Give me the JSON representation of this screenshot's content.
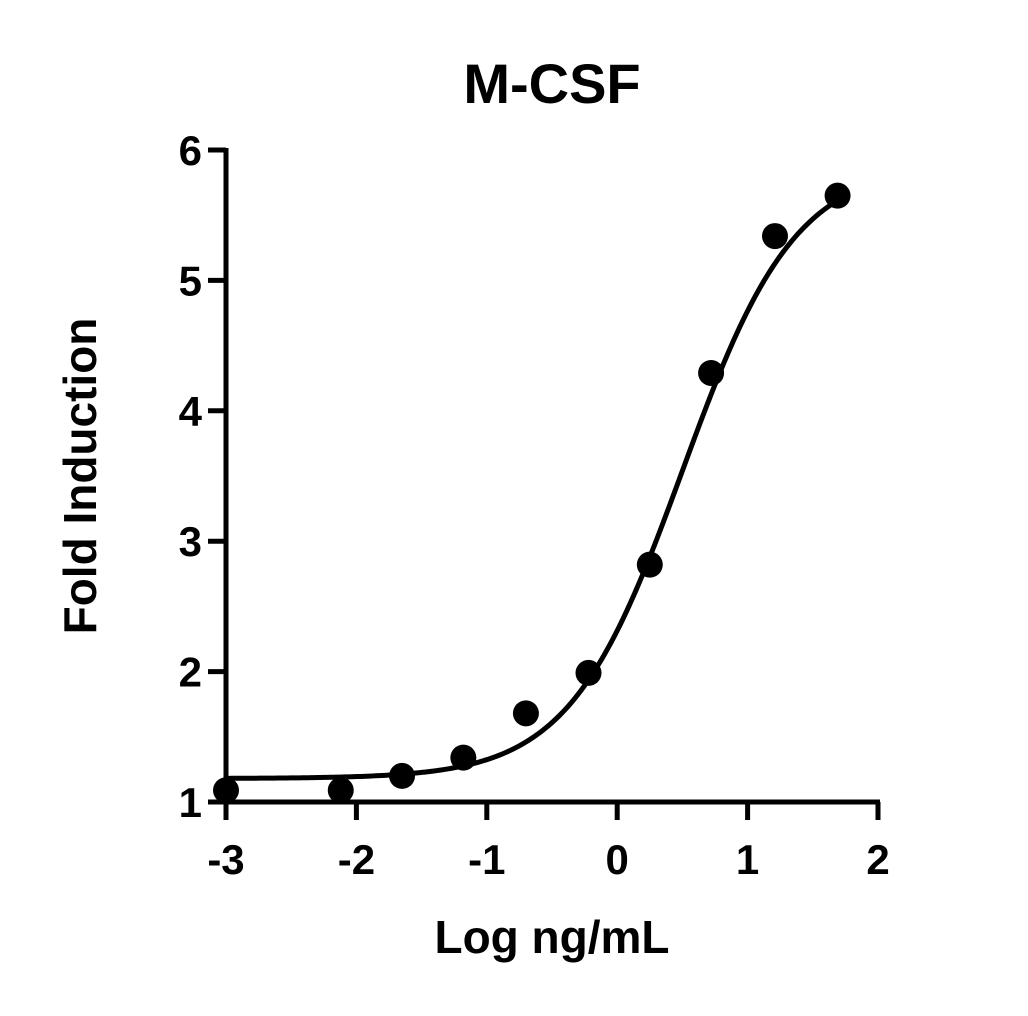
{
  "chart_data": {
    "type": "scatter",
    "title": "M-CSF",
    "xlabel": "Log ng/mL",
    "ylabel": "Fold Induction",
    "xlim": [
      -3,
      2
    ],
    "ylim": [
      1,
      6
    ],
    "x_ticks": [
      -3,
      -2,
      -1,
      0,
      1,
      2
    ],
    "y_ticks": [
      1,
      2,
      3,
      4,
      5,
      6
    ],
    "x_tick_labels": [
      "-3",
      "-2",
      "-1",
      "0",
      "1",
      "2"
    ],
    "y_tick_labels": [
      "1",
      "2",
      "3",
      "4",
      "5",
      "6"
    ],
    "grid": false,
    "legend": "none",
    "series": [
      {
        "x": [
          -3.0,
          -2.12,
          -1.65,
          -1.18,
          -0.7,
          -0.22,
          0.25,
          0.72,
          1.21,
          1.69
        ],
        "y": [
          1.09,
          1.09,
          1.2,
          1.34,
          1.68,
          1.99,
          2.82,
          4.29,
          5.34,
          5.65
        ]
      }
    ],
    "fit_curve": {
      "model": "4PL",
      "bottom": 1.18,
      "top": 5.9,
      "logEC50": 0.5,
      "hill": 1.0
    }
  }
}
